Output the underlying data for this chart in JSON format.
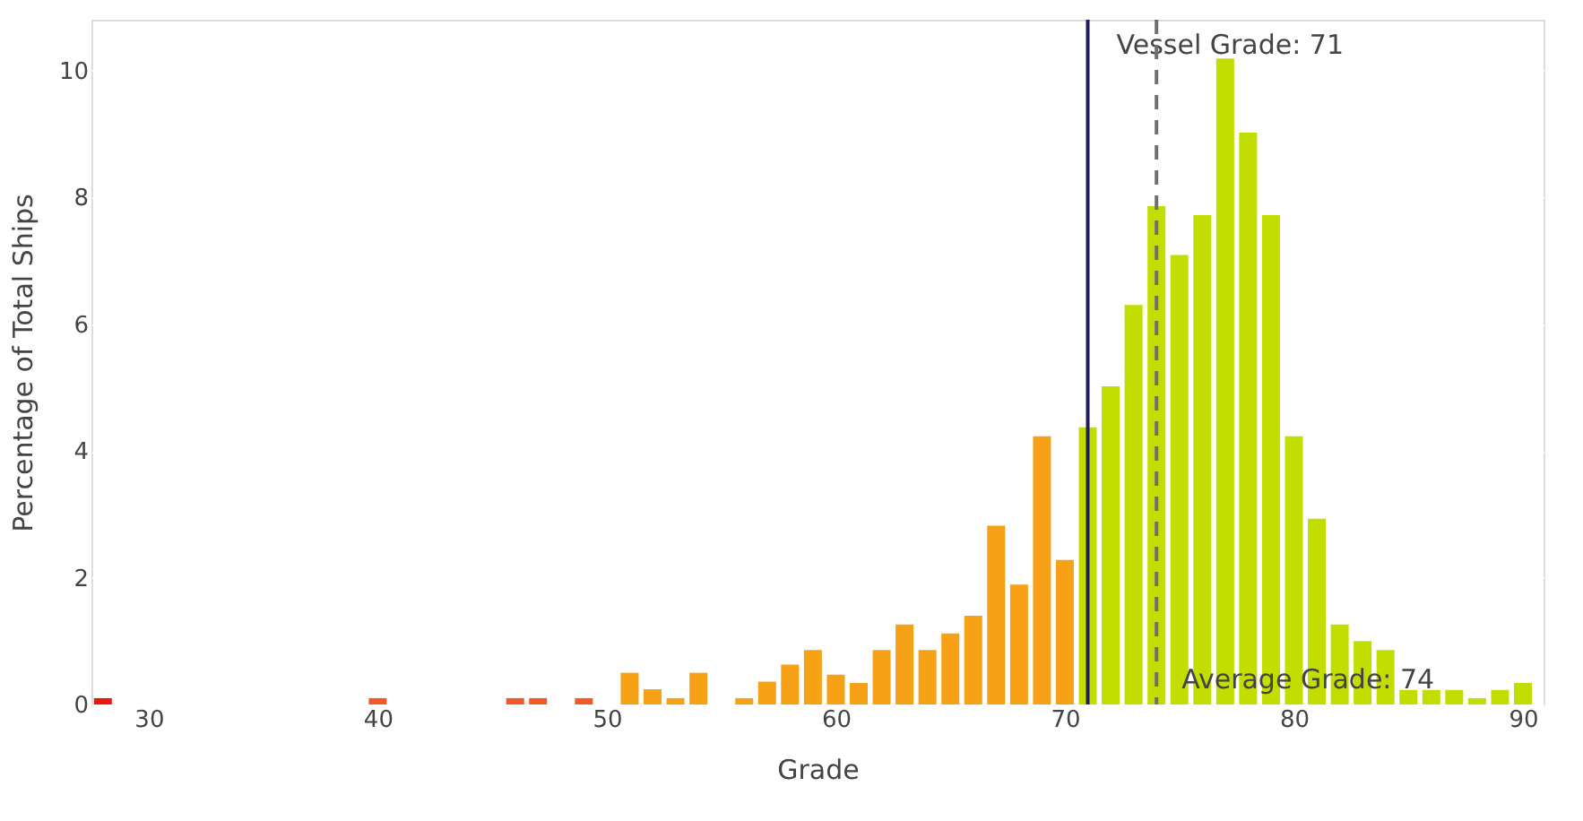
{
  "chart_data": {
    "type": "bar",
    "xlabel": "Grade",
    "ylabel": "Percentage of Total Ships",
    "x": [
      28,
      40,
      46,
      47,
      49,
      51,
      52,
      53,
      54,
      56,
      57,
      58,
      59,
      60,
      61,
      62,
      63,
      64,
      65,
      66,
      67,
      68,
      69,
      70,
      71,
      72,
      73,
      74,
      75,
      76,
      77,
      78,
      79,
      80,
      81,
      82,
      83,
      84,
      85,
      86,
      87,
      88,
      89,
      90
    ],
    "values": [
      0.1,
      0.1,
      0.1,
      0.1,
      0.1,
      0.5,
      0.24,
      0.1,
      0.5,
      0.1,
      0.36,
      0.63,
      0.86,
      0.47,
      0.34,
      0.86,
      1.26,
      0.86,
      1.12,
      1.4,
      2.82,
      1.89,
      4.23,
      2.28,
      4.37,
      5.02,
      6.3,
      7.86,
      7.09,
      7.72,
      10.19,
      9.02,
      7.72,
      4.23,
      2.93,
      1.26,
      1.0,
      0.86,
      0.23,
      0.23,
      0.23,
      0.1,
      0.23,
      0.34
    ],
    "colors": [
      "#e8180c",
      "#f15a24",
      "#f15a24",
      "#f15a24",
      "#f15a24",
      "#f7a116",
      "#f7a116",
      "#f7a116",
      "#f7a116",
      "#f7a116",
      "#f7a116",
      "#f7a116",
      "#f7a116",
      "#f7a116",
      "#f7a116",
      "#f7a116",
      "#f7a116",
      "#f7a116",
      "#f7a116",
      "#f7a116",
      "#f7a116",
      "#f7a116",
      "#f7a116",
      "#f7a116",
      "#c1de00",
      "#c1de00",
      "#c1de00",
      "#c1de00",
      "#c1de00",
      "#c1de00",
      "#c1de00",
      "#c1de00",
      "#c1de00",
      "#c1de00",
      "#c1de00",
      "#c1de00",
      "#c1de00",
      "#c1de00",
      "#c1de00",
      "#c1de00",
      "#c1de00",
      "#c1de00",
      "#c1de00",
      "#c1de00"
    ],
    "xlim": [
      27.5,
      90.9
    ],
    "xticks": [
      30,
      40,
      50,
      60,
      70,
      80,
      90
    ],
    "ylim": [
      0,
      10.8
    ],
    "yticks": [
      0,
      2,
      4,
      6,
      8,
      10
    ],
    "ref_lines": [
      {
        "axis": "x",
        "value": 71,
        "label": "Vessel Grade: 71",
        "color": "#1f1d5a",
        "line_style": "solid"
      },
      {
        "axis": "x",
        "value": 74,
        "label": "Average Grade: 74",
        "color": "#707070",
        "line_style": "dashed"
      }
    ],
    "grid": "y"
  }
}
